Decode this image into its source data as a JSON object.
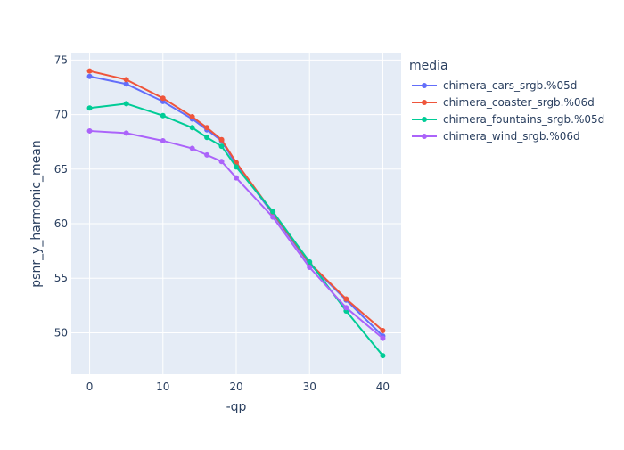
{
  "chart_data": {
    "type": "line",
    "xlabel": "-qp",
    "ylabel": "psnr_y_harmonic_mean",
    "xlim": [
      -2.5,
      42.5
    ],
    "ylim": [
      46.2,
      75.6
    ],
    "x_ticks": [
      0,
      10,
      20,
      30,
      40
    ],
    "y_ticks": [
      50,
      55,
      60,
      65,
      70,
      75
    ],
    "grid": true,
    "legend": {
      "title": "media",
      "placement": "right"
    },
    "series": [
      {
        "name": "chimera_cars_srgb.%05d",
        "color": "#636efa",
        "x": [
          0,
          5,
          10,
          14,
          16,
          18,
          20,
          25,
          30,
          35,
          40
        ],
        "y": [
          73.5,
          72.8,
          71.2,
          69.6,
          68.6,
          67.6,
          65.4,
          60.9,
          56.3,
          53.0,
          49.7
        ]
      },
      {
        "name": "chimera_coaster_srgb.%06d",
        "color": "#ef553b",
        "x": [
          0,
          5,
          10,
          14,
          16,
          18,
          20,
          25,
          30,
          35,
          40
        ],
        "y": [
          74.0,
          73.2,
          71.5,
          69.8,
          68.8,
          67.7,
          65.6,
          61.0,
          56.4,
          53.1,
          50.2
        ]
      },
      {
        "name": "chimera_fountains_srgb.%05d",
        "color": "#00cc96",
        "x": [
          0,
          5,
          10,
          14,
          16,
          18,
          20,
          25,
          30,
          35,
          40
        ],
        "y": [
          70.6,
          71.0,
          69.9,
          68.8,
          67.9,
          67.1,
          65.2,
          61.1,
          56.5,
          52.0,
          47.9
        ]
      },
      {
        "name": "chimera_wind_srgb.%06d",
        "color": "#ab63fa",
        "x": [
          0,
          5,
          10,
          14,
          16,
          18,
          20,
          25,
          30,
          35,
          40
        ],
        "y": [
          68.5,
          68.3,
          67.6,
          66.9,
          66.3,
          65.7,
          64.2,
          60.6,
          56.0,
          52.3,
          49.5
        ]
      }
    ]
  }
}
